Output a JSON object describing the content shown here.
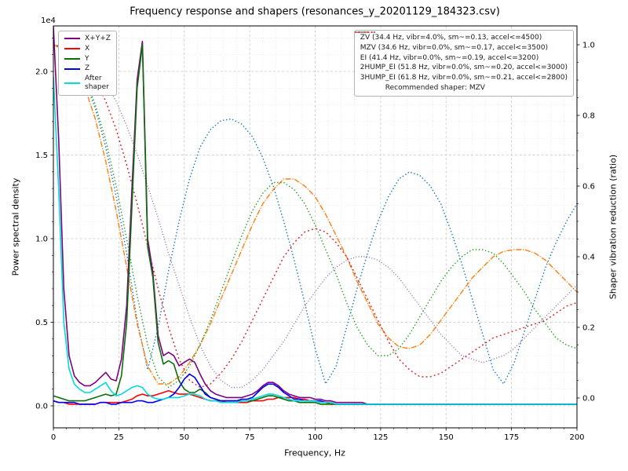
{
  "figure": {
    "title": "Frequency response and shapers (resonances_y_20201129_184323.csv)",
    "xlabel": "Frequency, Hz",
    "ylabel_left": "Power spectral density",
    "ylabel_right": "Shaper vibration reduction (ratio)",
    "offset_text": "1e4"
  },
  "chart_data": {
    "type": "line",
    "title": "Frequency response and shapers (resonances_y_20201129_184323.csv)",
    "xlabel": "Frequency, Hz",
    "x_axis": {
      "min": 0,
      "max": 200,
      "ticks": [
        0,
        25,
        50,
        75,
        100,
        125,
        150,
        175,
        200
      ],
      "minor_step": 5
    },
    "y_left": {
      "label": "Power spectral density",
      "scale": "1e4",
      "min": 0,
      "max": 2.27,
      "ticks": [
        "0.0",
        "0.5",
        "1.0",
        "1.5",
        "2.0"
      ],
      "tick_values": [
        0,
        0.5,
        1,
        1.5,
        2
      ],
      "minor_step": 0.1
    },
    "y_right": {
      "label": "Shaper vibration reduction (ratio)",
      "min": 0,
      "max": 1.0,
      "ticks": [
        "0.0",
        "0.2",
        "0.4",
        "0.6",
        "0.8",
        "1.0"
      ],
      "tick_values": [
        0,
        0.2,
        0.4,
        0.6,
        0.8,
        1.0
      ]
    },
    "grid": "both",
    "legend_left_position": "upper left",
    "legend_right_position": "upper right",
    "recommended_label": "Recommended shaper: MZV",
    "psd_series": {
      "x_step": 2,
      "units": "1e4",
      "series": [
        {
          "name": "xyz",
          "label": "X+Y+Z",
          "color": "#800080",
          "values": [
            2.27,
            1.6,
            0.7,
            0.3,
            0.18,
            0.14,
            0.12,
            0.12,
            0.14,
            0.17,
            0.2,
            0.16,
            0.15,
            0.28,
            0.6,
            1.3,
            1.95,
            2.18,
            1.0,
            0.8,
            0.42,
            0.3,
            0.32,
            0.3,
            0.24,
            0.26,
            0.28,
            0.26,
            0.19,
            0.13,
            0.09,
            0.07,
            0.06,
            0.05,
            0.05,
            0.05,
            0.05,
            0.06,
            0.07,
            0.09,
            0.12,
            0.14,
            0.14,
            0.12,
            0.09,
            0.07,
            0.06,
            0.05,
            0.05,
            0.05,
            0.04,
            0.04,
            0.03,
            0.03,
            0.02,
            0.02,
            0.02,
            0.02,
            0.02,
            0.02,
            0.01,
            0.01,
            0.01,
            0.01,
            0.01,
            0.01,
            0.01,
            0.01,
            0.01,
            0.01,
            0.01,
            0.01,
            0.01,
            0.01,
            0.01,
            0.01,
            0.01,
            0.01,
            0.01,
            0.01,
            0.01,
            0.01,
            0.01,
            0.01,
            0.01,
            0.01,
            0.01,
            0.01,
            0.01,
            0.01,
            0.01,
            0.01,
            0.01,
            0.01,
            0.01,
            0.01,
            0.01,
            0.01,
            0.01,
            0.01,
            0.01
          ]
        },
        {
          "name": "x",
          "label": "X",
          "color": "#ff0000",
          "values": [
            0.03,
            0.02,
            0.02,
            0.01,
            0.01,
            0.01,
            0.01,
            0.01,
            0.01,
            0.02,
            0.02,
            0.02,
            0.02,
            0.02,
            0.03,
            0.04,
            0.06,
            0.07,
            0.06,
            0.06,
            0.07,
            0.08,
            0.09,
            0.08,
            0.07,
            0.07,
            0.07,
            0.06,
            0.05,
            0.04,
            0.03,
            0.03,
            0.03,
            0.02,
            0.02,
            0.02,
            0.02,
            0.02,
            0.03,
            0.03,
            0.03,
            0.04,
            0.04,
            0.05,
            0.05,
            0.05,
            0.05,
            0.04,
            0.04,
            0.03,
            0.03,
            0.02,
            0.02,
            0.01,
            0.01,
            0.01,
            0.01,
            0.01,
            0.01,
            0.01,
            0.01,
            0.01,
            0.01,
            0.01,
            0.01,
            0.01,
            0.01,
            0.01,
            0.01,
            0.01,
            0.01,
            0.01,
            0.01,
            0.01,
            0.01,
            0.01,
            0.01,
            0.01,
            0.01,
            0.01,
            0.01,
            0.01,
            0.01,
            0.01,
            0.01,
            0.01,
            0.01,
            0.01,
            0.01,
            0.01,
            0.01,
            0.01,
            0.01,
            0.01,
            0.01,
            0.01,
            0.01,
            0.01,
            0.01,
            0.01,
            0.01
          ]
        },
        {
          "name": "y",
          "label": "Y",
          "color": "#0b6e0b",
          "values": [
            0.06,
            0.05,
            0.04,
            0.03,
            0.03,
            0.03,
            0.03,
            0.04,
            0.05,
            0.06,
            0.07,
            0.06,
            0.07,
            0.18,
            0.5,
            1.2,
            1.9,
            2.16,
            0.95,
            0.77,
            0.38,
            0.25,
            0.27,
            0.25,
            0.15,
            0.1,
            0.08,
            0.08,
            0.1,
            0.08,
            0.05,
            0.04,
            0.03,
            0.03,
            0.03,
            0.03,
            0.03,
            0.03,
            0.03,
            0.04,
            0.05,
            0.06,
            0.06,
            0.05,
            0.04,
            0.03,
            0.03,
            0.02,
            0.02,
            0.02,
            0.02,
            0.01,
            0.01,
            0.01,
            0.01,
            0.01,
            0.01,
            0.01,
            0.01,
            0.01,
            0.01,
            0.01,
            0.01,
            0.01,
            0.01,
            0.01,
            0.01,
            0.01,
            0.01,
            0.01,
            0.01,
            0.01,
            0.01,
            0.01,
            0.01,
            0.01,
            0.01,
            0.01,
            0.01,
            0.01,
            0.01,
            0.01,
            0.01,
            0.01,
            0.01,
            0.01,
            0.01,
            0.01,
            0.01,
            0.01,
            0.01,
            0.01,
            0.01,
            0.01,
            0.01,
            0.01,
            0.01,
            0.01,
            0.01,
            0.01,
            0.01
          ]
        },
        {
          "name": "z",
          "label": "Z",
          "color": "#0000ee",
          "values": [
            0.03,
            0.02,
            0.02,
            0.02,
            0.02,
            0.01,
            0.01,
            0.01,
            0.01,
            0.02,
            0.02,
            0.01,
            0.01,
            0.02,
            0.02,
            0.02,
            0.03,
            0.03,
            0.02,
            0.02,
            0.03,
            0.04,
            0.05,
            0.07,
            0.11,
            0.16,
            0.19,
            0.17,
            0.12,
            0.07,
            0.05,
            0.04,
            0.03,
            0.03,
            0.03,
            0.03,
            0.04,
            0.04,
            0.05,
            0.08,
            0.11,
            0.13,
            0.13,
            0.11,
            0.08,
            0.06,
            0.04,
            0.04,
            0.03,
            0.03,
            0.03,
            0.03,
            0.02,
            0.02,
            0.01,
            0.01,
            0.01,
            0.01,
            0.01,
            0.01,
            0.01,
            0.01,
            0.01,
            0.01,
            0.01,
            0.01,
            0.01,
            0.01,
            0.01,
            0.01,
            0.01,
            0.01,
            0.01,
            0.01,
            0.01,
            0.01,
            0.01,
            0.01,
            0.01,
            0.01,
            0.01,
            0.01,
            0.01,
            0.01,
            0.01,
            0.01,
            0.01,
            0.01,
            0.01,
            0.01,
            0.01,
            0.01,
            0.01,
            0.01,
            0.01,
            0.01,
            0.01,
            0.01,
            0.01,
            0.01,
            0.01
          ]
        },
        {
          "name": "after-shaper",
          "label": "After\nshaper",
          "color": "#00dcdc",
          "values": [
            1.97,
            1.3,
            0.5,
            0.22,
            0.13,
            0.1,
            0.08,
            0.08,
            0.1,
            0.12,
            0.14,
            0.09,
            0.06,
            0.07,
            0.09,
            0.11,
            0.12,
            0.11,
            0.07,
            0.05,
            0.04,
            0.04,
            0.05,
            0.05,
            0.05,
            0.06,
            0.07,
            0.07,
            0.06,
            0.04,
            0.03,
            0.03,
            0.02,
            0.02,
            0.02,
            0.02,
            0.03,
            0.03,
            0.04,
            0.05,
            0.06,
            0.07,
            0.07,
            0.06,
            0.05,
            0.04,
            0.03,
            0.03,
            0.03,
            0.03,
            0.03,
            0.02,
            0.02,
            0.02,
            0.01,
            0.01,
            0.01,
            0.01,
            0.01,
            0.01,
            0.01,
            0.01,
            0.01,
            0.01,
            0.01,
            0.01,
            0.01,
            0.01,
            0.01,
            0.01,
            0.01,
            0.01,
            0.01,
            0.01,
            0.01,
            0.01,
            0.01,
            0.01,
            0.01,
            0.01,
            0.01,
            0.01,
            0.01,
            0.01,
            0.01,
            0.01,
            0.01,
            0.01,
            0.01,
            0.01,
            0.01,
            0.01,
            0.01,
            0.01,
            0.01,
            0.01,
            0.01,
            0.01,
            0.01,
            0.01,
            0.01
          ]
        }
      ]
    },
    "shaper_series": {
      "x_step": 4,
      "series": [
        {
          "name": "ZV",
          "label": "ZV (34.4 Hz, vibr=4.0%, sm~=0.13, accel<=4500)",
          "color": "#1f77b4",
          "dash": "1.5 2.6",
          "values": [
            1.0,
            0.99,
            0.96,
            0.9,
            0.82,
            0.71,
            0.57,
            0.41,
            0.22,
            0.08,
            0.2,
            0.36,
            0.5,
            0.62,
            0.71,
            0.76,
            0.785,
            0.79,
            0.775,
            0.74,
            0.68,
            0.6,
            0.5,
            0.39,
            0.27,
            0.14,
            0.04,
            0.09,
            0.2,
            0.31,
            0.41,
            0.5,
            0.57,
            0.62,
            0.64,
            0.63,
            0.6,
            0.55,
            0.47,
            0.38,
            0.28,
            0.18,
            0.08,
            0.04,
            0.1,
            0.19,
            0.28,
            0.37,
            0.44,
            0.5,
            0.55
          ]
        },
        {
          "name": "MZV",
          "label": "MZV (34.6 Hz, vibr=0.0%, sm~=0.17, accel<=3500)",
          "color": "#ff7f0e",
          "dash": "7 1.8 1.2 1.8",
          "values": [
            1.0,
            0.985,
            0.945,
            0.88,
            0.79,
            0.67,
            0.53,
            0.37,
            0.21,
            0.09,
            0.04,
            0.04,
            0.06,
            0.1,
            0.15,
            0.21,
            0.28,
            0.35,
            0.42,
            0.49,
            0.55,
            0.59,
            0.62,
            0.62,
            0.6,
            0.57,
            0.52,
            0.46,
            0.4,
            0.33,
            0.27,
            0.21,
            0.17,
            0.145,
            0.14,
            0.15,
            0.18,
            0.22,
            0.26,
            0.3,
            0.34,
            0.37,
            0.4,
            0.415,
            0.42,
            0.42,
            0.41,
            0.39,
            0.36,
            0.33,
            0.3
          ]
        },
        {
          "name": "EI",
          "label": "EI (41.4 Hz, vibr=0.0%, sm~=0.19, accel<=3200)",
          "color": "#2ca02c",
          "dash": "1.5 2.6",
          "values": [
            1.0,
            0.99,
            0.96,
            0.91,
            0.83,
            0.73,
            0.6,
            0.45,
            0.29,
            0.15,
            0.06,
            0.03,
            0.05,
            0.09,
            0.15,
            0.22,
            0.3,
            0.38,
            0.46,
            0.53,
            0.58,
            0.61,
            0.61,
            0.59,
            0.55,
            0.49,
            0.42,
            0.35,
            0.27,
            0.2,
            0.15,
            0.12,
            0.12,
            0.14,
            0.18,
            0.23,
            0.28,
            0.33,
            0.37,
            0.4,
            0.42,
            0.42,
            0.41,
            0.38,
            0.34,
            0.3,
            0.25,
            0.21,
            0.17,
            0.15,
            0.14
          ]
        },
        {
          "name": "2HUMP_EI",
          "label": "2HUMP_EI (51.8 Hz, vibr=0.0%, sm~=0.20, accel<=3000)",
          "color": "#d62728",
          "dash": "2 3.2",
          "values": [
            1.0,
            0.995,
            0.975,
            0.945,
            0.9,
            0.84,
            0.76,
            0.66,
            0.55,
            0.43,
            0.31,
            0.2,
            0.11,
            0.05,
            0.03,
            0.04,
            0.07,
            0.11,
            0.16,
            0.22,
            0.28,
            0.34,
            0.4,
            0.44,
            0.47,
            0.48,
            0.47,
            0.44,
            0.4,
            0.34,
            0.28,
            0.22,
            0.16,
            0.11,
            0.08,
            0.06,
            0.06,
            0.07,
            0.09,
            0.11,
            0.13,
            0.15,
            0.17,
            0.18,
            0.19,
            0.2,
            0.21,
            0.22,
            0.24,
            0.26,
            0.27
          ]
        },
        {
          "name": "3HUMP_EI",
          "label": "3HUMP_EI (61.8 Hz, vibr=0.0%, sm~=0.21, accel<=2800)",
          "color": "#9467bd",
          "dash": "1 2.4",
          "values": [
            1.0,
            0.995,
            0.985,
            0.965,
            0.935,
            0.89,
            0.84,
            0.77,
            0.69,
            0.6,
            0.51,
            0.41,
            0.32,
            0.23,
            0.15,
            0.09,
            0.05,
            0.03,
            0.03,
            0.05,
            0.08,
            0.12,
            0.16,
            0.21,
            0.26,
            0.3,
            0.34,
            0.37,
            0.39,
            0.4,
            0.4,
            0.39,
            0.37,
            0.34,
            0.3,
            0.26,
            0.22,
            0.18,
            0.15,
            0.12,
            0.11,
            0.1,
            0.11,
            0.12,
            0.14,
            0.17,
            0.2,
            0.23,
            0.26,
            0.29,
            0.32
          ]
        }
      ]
    }
  }
}
